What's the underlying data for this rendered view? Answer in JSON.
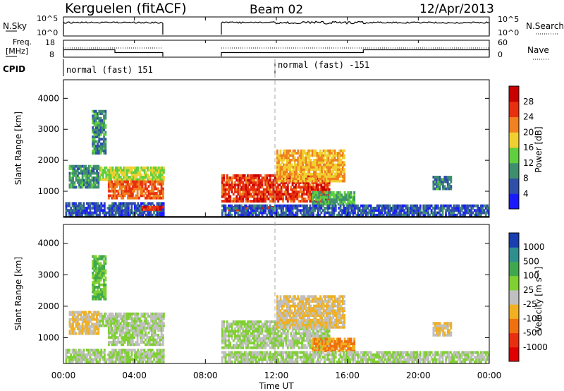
{
  "header": {
    "station": "Kerguelen (fitACF)",
    "beam": "Beam 02",
    "date": "12/Apr/2013"
  },
  "strips": {
    "nsky": {
      "label": "N.Sky",
      "tick_top": "10^5",
      "tick_bottom": "10^0",
      "right_label": "N.Search",
      "right_tick_top": "10^5",
      "right_tick_bottom": "10^0"
    },
    "freq": {
      "label_line1": "Freq.",
      "label_line2": "[MHz]",
      "tick_top": "18",
      "tick_bottom": "8",
      "right_label": "Nave",
      "right_tick_top": "60",
      "right_tick_bottom": "0"
    },
    "cpid": {
      "label": "CPID",
      "modes": [
        "normal (fast) 151",
        "normal (fast) -151"
      ]
    }
  },
  "panels": {
    "power": {
      "ylabel": "Slant Range [km]",
      "yticks": [
        "1000",
        "2000",
        "3000",
        "4000"
      ],
      "colorbar_label": "Power [dB]",
      "colorbar_ticks": [
        "4",
        "8",
        "12",
        "16",
        "20",
        "24",
        "28"
      ],
      "colorbar_colors": [
        "#1a1aff",
        "#2f4fa8",
        "#3f8f6f",
        "#5fcf3f",
        "#f0d030",
        "#f08020",
        "#e83010",
        "#c80000"
      ]
    },
    "velocity": {
      "ylabel": "Slant Range [km]",
      "yticks": [
        "1000",
        "2000",
        "3000",
        "4000"
      ],
      "colorbar_label": "Velocity [m s⁻¹]",
      "colorbar_ticks": [
        "1000",
        "500",
        "100",
        "25",
        "-25",
        "-100",
        "-500",
        "-1000"
      ],
      "colorbar_colors": [
        "#1a3fb0",
        "#2f8f8f",
        "#3fa84f",
        "#7fd030",
        "#c0c0c0",
        "#f0b020",
        "#f07010",
        "#e83010",
        "#e00000"
      ]
    }
  },
  "xaxis": {
    "label": "Time UT",
    "ticks": [
      "00:00",
      "04:00",
      "08:00",
      "12:00",
      "16:00",
      "20:00",
      "00:00"
    ]
  },
  "chart_data": {
    "type": "heatmap",
    "title": "Kerguelen (fitACF)  Beam 02  12/Apr/2013",
    "xlabel": "Time UT",
    "xlim": [
      0,
      24
    ],
    "ylim": [
      180,
      4600
    ],
    "panels": [
      "Power [dB]",
      "Velocity [m s⁻¹]"
    ],
    "data_gaps_hours": [
      [
        5.6,
        8.9
      ]
    ],
    "cpid_segments": [
      {
        "start": 0,
        "end": 5.6,
        "mode": "normal (fast) 151"
      },
      {
        "start": 8.9,
        "end": 24,
        "mode": "normal (fast) -151"
      }
    ],
    "freq_mhz": [
      {
        "start": 0,
        "end": 2.9,
        "value": 12.3
      },
      {
        "start": 2.9,
        "end": 5.6,
        "value": 10.5
      },
      {
        "start": 8.9,
        "end": 16.9,
        "value": 10.5
      },
      {
        "start": 16.9,
        "end": 24,
        "value": 12.3
      }
    ],
    "echo_regions": [
      {
        "t0": 0.1,
        "t1": 5.6,
        "r0": 200,
        "r1": 650,
        "power_db": 6,
        "velocity": 25
      },
      {
        "t0": 0.3,
        "t1": 2.0,
        "r0": 1100,
        "r1": 1800,
        "power_db": 10,
        "velocity": -25
      },
      {
        "t0": 1.6,
        "t1": 2.4,
        "r0": 2200,
        "r1": 3600,
        "power_db": 10,
        "velocity": 100
      },
      {
        "t0": 2.0,
        "t1": 5.6,
        "r0": 1350,
        "r1": 1800,
        "power_db": 16,
        "velocity": 25
      },
      {
        "t0": 2.5,
        "t1": 5.6,
        "r0": 750,
        "r1": 1350,
        "power_db": 24,
        "velocity": 25
      },
      {
        "t0": 4.4,
        "t1": 5.6,
        "r0": 380,
        "r1": 520,
        "power_db": 26,
        "velocity": 25
      },
      {
        "t0": 8.9,
        "t1": 15.0,
        "r0": 650,
        "r1": 1500,
        "power_db": 26,
        "velocity": 25
      },
      {
        "t0": 9.0,
        "t1": 12.0,
        "r0": 370,
        "r1": 520,
        "power_db": 28,
        "velocity": 25
      },
      {
        "t0": 12.0,
        "t1": 15.8,
        "r0": 1300,
        "r1": 2300,
        "power_db": 20,
        "velocity": -25
      },
      {
        "t0": 14.0,
        "t1": 16.4,
        "r0": 550,
        "r1": 1000,
        "power_db": 12,
        "velocity": -100
      },
      {
        "t0": 8.9,
        "t1": 24.0,
        "r0": 200,
        "r1": 550,
        "power_db": 6,
        "velocity": 25
      },
      {
        "t0": 20.8,
        "t1": 21.8,
        "r0": 1050,
        "r1": 1450,
        "power_db": 9,
        "velocity": -25
      }
    ]
  }
}
